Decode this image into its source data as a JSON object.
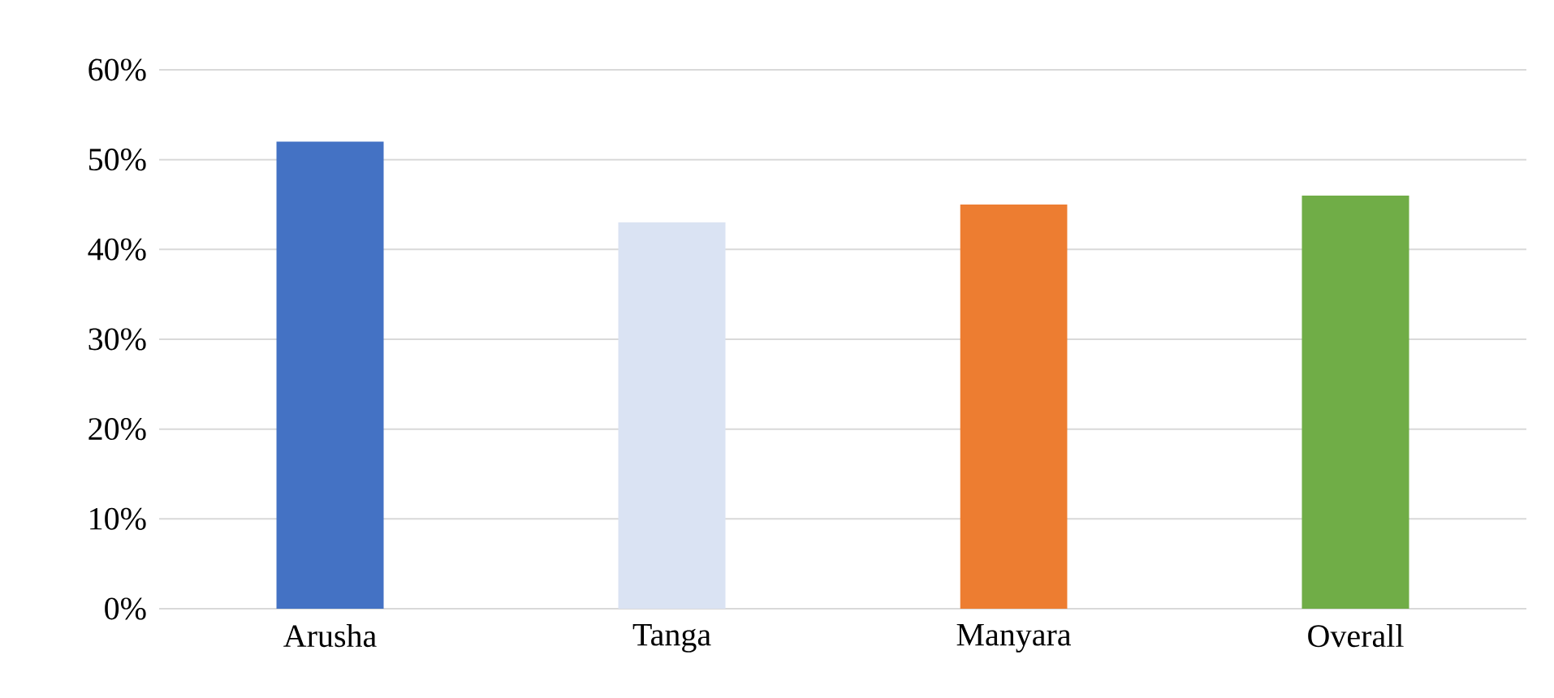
{
  "chart_data": {
    "type": "bar",
    "categories": [
      "Arusha",
      "Tanga",
      "Manyara",
      "Overall"
    ],
    "values": [
      52,
      43,
      45,
      46
    ],
    "colors": [
      "#4472c4",
      "#dae3f3",
      "#ed7d31",
      "#70ad47"
    ],
    "ylim": [
      0,
      60
    ],
    "yticks": [
      {
        "value": 0,
        "label": "0%"
      },
      {
        "value": 10,
        "label": "10%"
      },
      {
        "value": 20,
        "label": "20%"
      },
      {
        "value": 30,
        "label": "30%"
      },
      {
        "value": 40,
        "label": "40%"
      },
      {
        "value": 50,
        "label": "50%"
      },
      {
        "value": 60,
        "label": "60%"
      }
    ],
    "grid": "y"
  }
}
